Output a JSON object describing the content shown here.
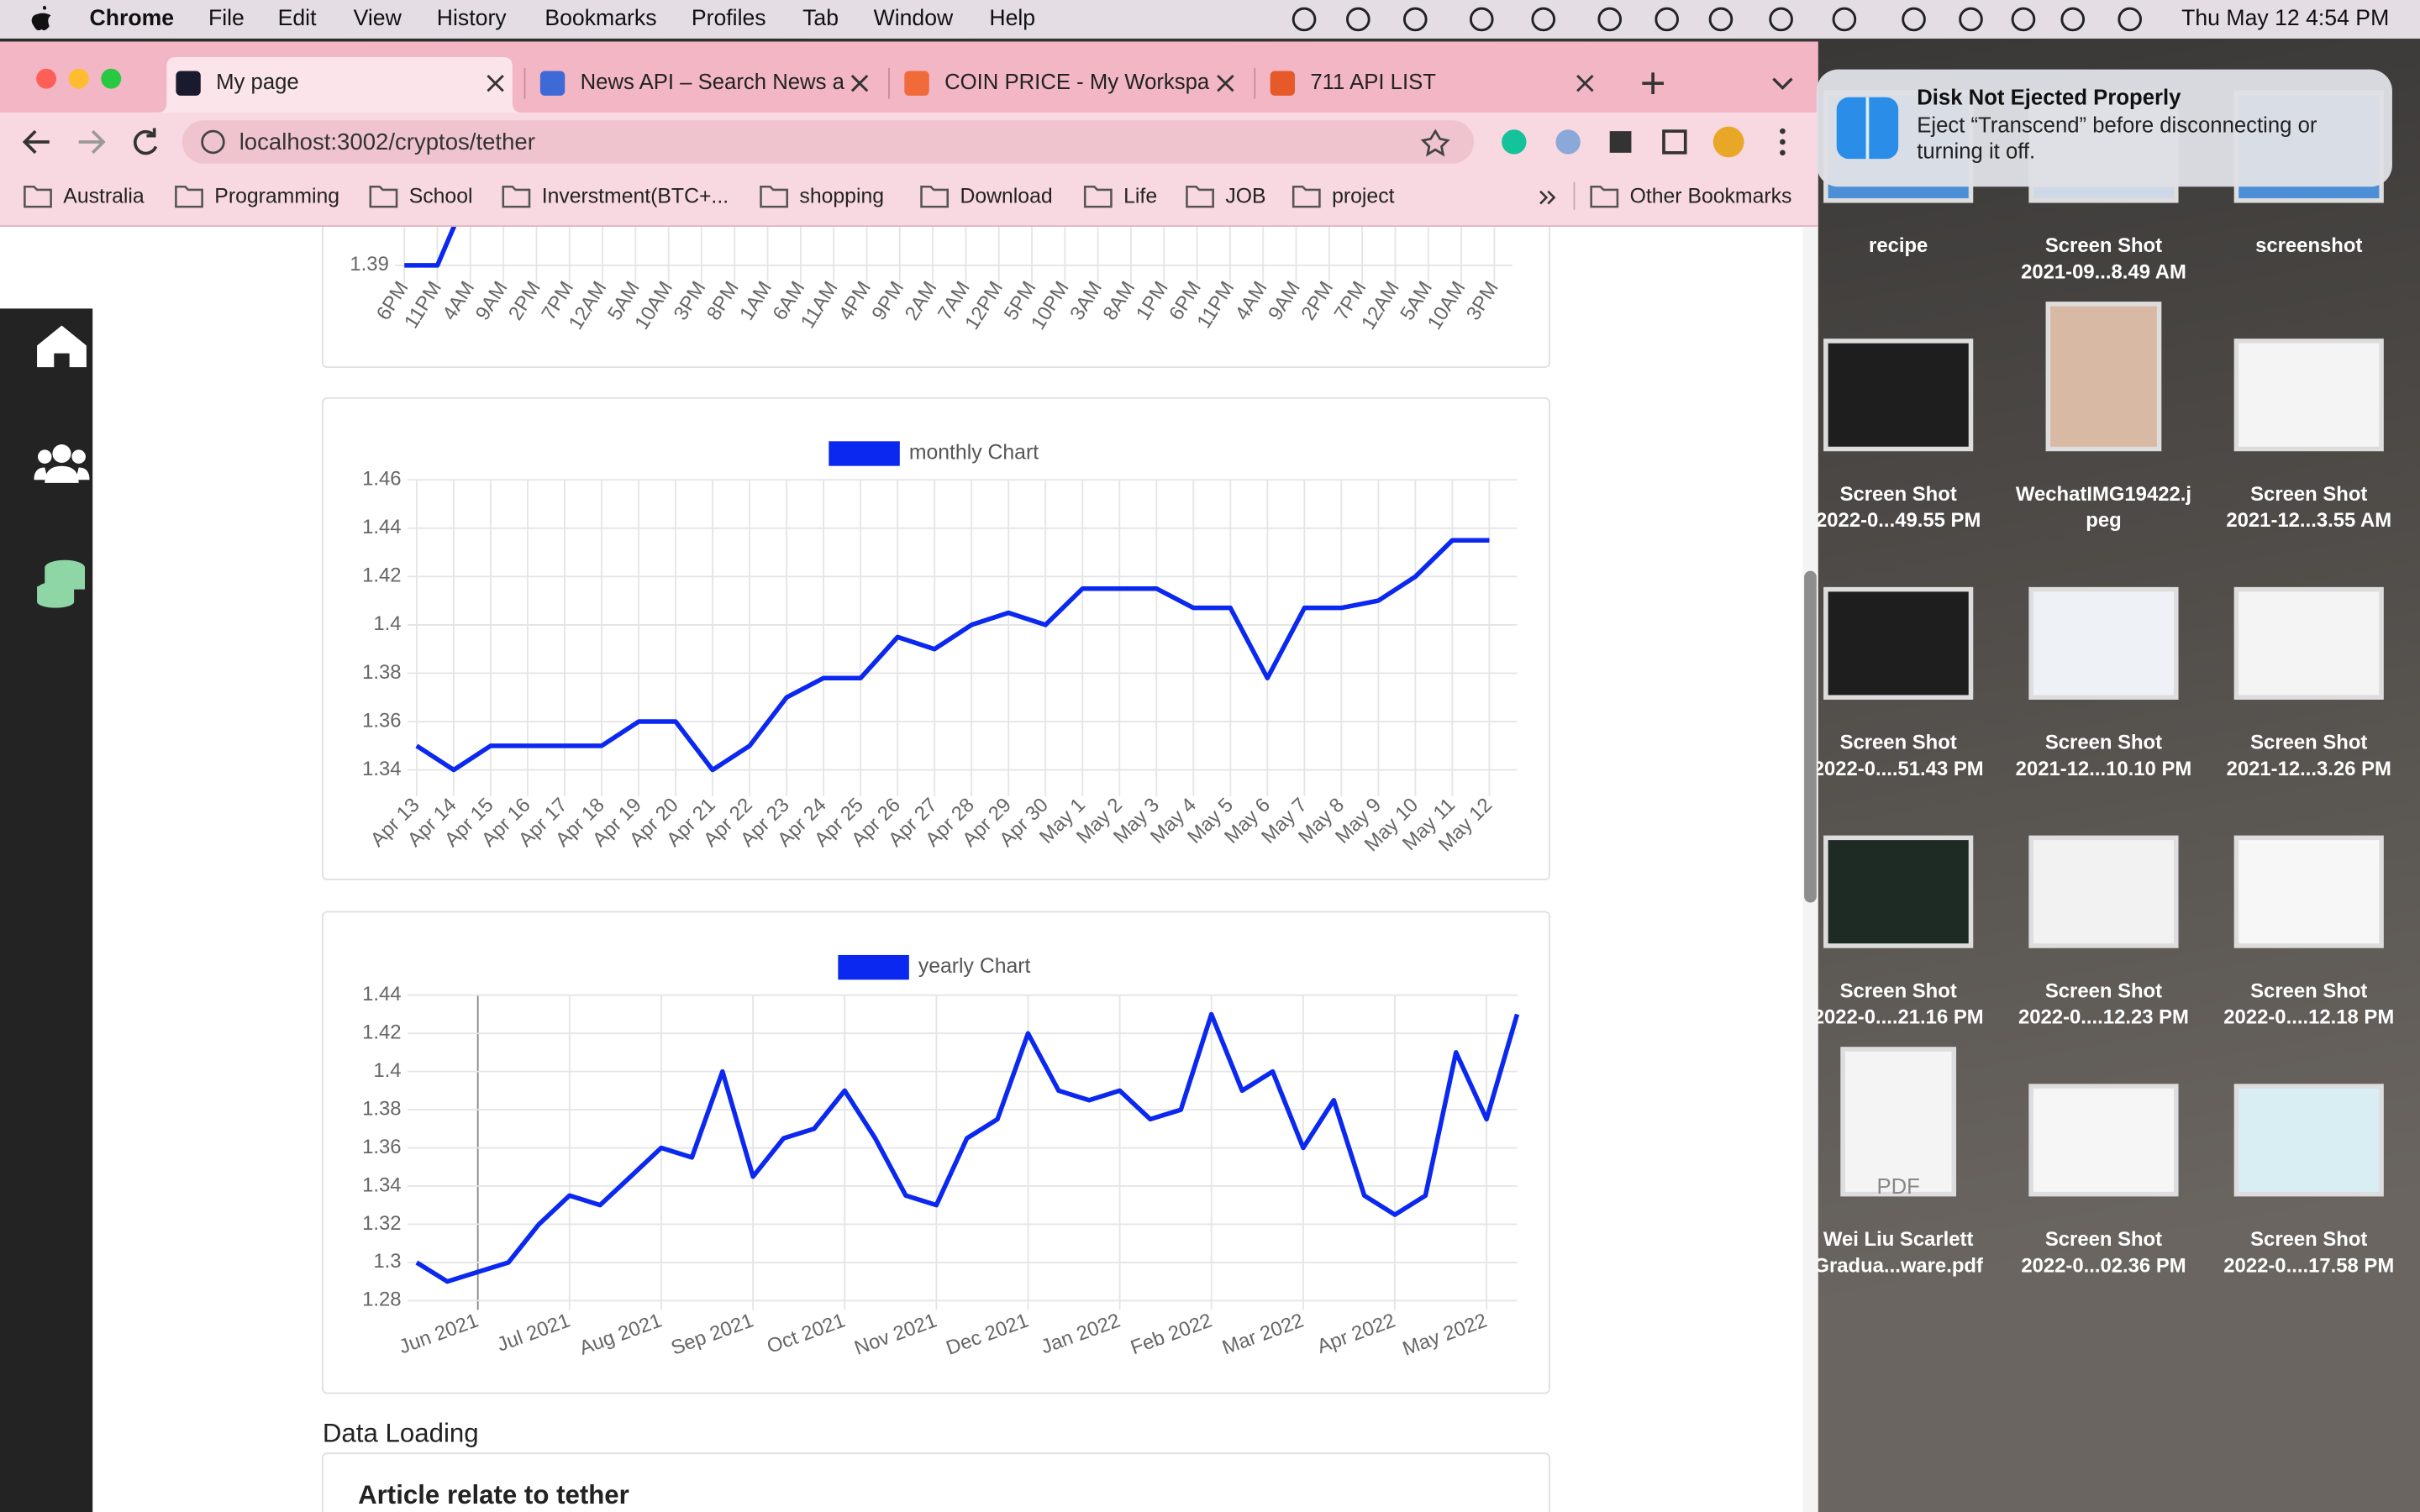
{
  "menu_bar": {
    "app": "Chrome",
    "items": [
      "File",
      "Edit",
      "View",
      "History",
      "Bookmarks",
      "Profiles",
      "Tab",
      "Window",
      "Help"
    ],
    "clock": "Thu May 12  4:54 PM"
  },
  "browser": {
    "tabs": [
      "My page",
      "News API – Search News a",
      "COIN PRICE - My Workspa",
      "711 API LIST"
    ],
    "url": "localhost:3002/cryptos/tether",
    "bookmarks": [
      "Australia",
      "Programming",
      "School",
      "Inverstment(BTC+...",
      "shopping",
      "Download",
      "Life",
      "JOB",
      "project"
    ],
    "other_bookmarks": "Other Bookmarks"
  },
  "notification": {
    "title": "Disk Not Ejected Properly",
    "body": [
      "Eject “Transcend” before disconnecting or",
      "turning it off."
    ]
  },
  "desktop_icons": [
    [
      "recipe"
    ],
    [
      "Screen Shot",
      "2021-09...8.49 AM"
    ],
    [
      "screenshot"
    ],
    [
      "Screen Shot",
      "2022-0...49.55 PM"
    ],
    [
      "WechatIMG19422.j",
      "peg"
    ],
    [
      "Screen Shot",
      "2021-12...3.55 AM"
    ],
    [
      "Screen Shot",
      "2022-0....51.43 PM"
    ],
    [
      "Screen Shot",
      "2021-12...10.10 PM"
    ],
    [
      "Screen Shot",
      "2021-12...3.26 PM"
    ],
    [
      "Screen Shot",
      "2022-0....21.16 PM"
    ],
    [
      "Screen Shot",
      "2022-0....12.23 PM"
    ],
    [
      "Screen Shot",
      "2022-0....12.18 PM"
    ],
    [
      "Wei Liu Scarlett",
      "Gradua...ware.pdf"
    ],
    [
      "Screen Shot",
      "2022-0...02.36 PM"
    ],
    [
      "Screen Shot",
      "2022-0....17.58 PM"
    ]
  ],
  "pdf_badge": "PDF",
  "chart_data": [
    {
      "type": "line",
      "color": "#0a28f0",
      "categories": [
        "6PM",
        "11PM",
        "4AM",
        "9AM",
        "2PM",
        "7PM",
        "12AM",
        "5AM",
        "10AM",
        "3PM",
        "8PM",
        "1AM",
        "6AM",
        "11AM",
        "4PM",
        "9PM",
        "2AM",
        "7AM",
        "12PM",
        "5PM",
        "10PM",
        "3AM",
        "8AM",
        "1PM",
        "6PM",
        "11PM",
        "4AM",
        "9AM",
        "2PM",
        "7PM",
        "12AM",
        "5AM",
        "10AM",
        "3PM"
      ],
      "values": [
        1.39,
        1.39,
        1.4,
        null,
        null,
        null,
        null,
        null,
        null,
        null,
        null,
        null,
        null,
        null,
        null,
        null,
        null,
        null,
        null,
        null,
        null,
        null,
        null,
        null,
        null,
        null,
        null,
        null,
        null,
        null,
        null,
        null,
        null,
        null
      ],
      "ylim": [
        1.39,
        1.395
      ],
      "yticks": [
        1.39
      ],
      "grid": true
    },
    {
      "type": "line",
      "categories": [
        "Apr 13",
        "Apr 14",
        "Apr 15",
        "Apr 16",
        "Apr 17",
        "Apr 18",
        "Apr 19",
        "Apr 20",
        "Apr 21",
        "Apr 22",
        "Apr 23",
        "Apr 24",
        "Apr 25",
        "Apr 26",
        "Apr 27",
        "Apr 28",
        "Apr 29",
        "Apr 30",
        "May 1",
        "May 2",
        "May 3",
        "May 4",
        "May 5",
        "May 6",
        "May 7",
        "May 8",
        "May 9",
        "May 10",
        "May 11",
        "May 12"
      ],
      "series": [
        {
          "name": "monthly  Chart",
          "color": "#0a28f0",
          "values": [
            1.35,
            1.34,
            1.35,
            1.35,
            1.35,
            1.35,
            1.36,
            1.36,
            1.34,
            1.35,
            1.37,
            1.378,
            1.378,
            1.395,
            1.39,
            1.4,
            1.405,
            1.4,
            1.415,
            1.415,
            1.415,
            1.407,
            1.407,
            1.378,
            1.407,
            1.407,
            1.41,
            1.42,
            1.435,
            1.435
          ]
        }
      ],
      "ylim": [
        1.333,
        1.46
      ],
      "yticks": [
        1.34,
        1.36,
        1.38,
        1.4,
        1.42,
        1.44,
        1.46
      ],
      "grid": true
    },
    {
      "type": "line",
      "categories": [
        null,
        null,
        "Jun 2021",
        null,
        null,
        "Jul 2021",
        null,
        null,
        "Aug 2021",
        null,
        null,
        "Sep 2021",
        null,
        null,
        "Oct 2021",
        null,
        null,
        "Nov 2021",
        null,
        null,
        "Dec 2021",
        null,
        null,
        "Jan 2022",
        null,
        null,
        "Feb 2022",
        null,
        null,
        "Mar 2022",
        null,
        null,
        "Apr 2022",
        null,
        null,
        "May 2022",
        null
      ],
      "series": [
        {
          "name": "yearly  Chart",
          "color": "#0a28f0",
          "values": [
            1.3,
            1.29,
            1.295,
            1.3,
            1.32,
            1.335,
            1.33,
            1.345,
            1.36,
            1.355,
            1.4,
            1.345,
            1.365,
            1.37,
            1.39,
            1.365,
            1.335,
            1.33,
            1.365,
            1.375,
            1.42,
            1.39,
            1.385,
            1.39,
            1.375,
            1.38,
            1.43,
            1.39,
            1.4,
            1.36,
            1.385,
            1.335,
            1.325,
            1.335,
            1.41,
            1.375,
            1.43
          ]
        }
      ],
      "ylim": [
        1.28,
        1.44
      ],
      "yticks": [
        1.28,
        1.3,
        1.32,
        1.34,
        1.36,
        1.38,
        1.4,
        1.42,
        1.44
      ],
      "grid": true
    }
  ],
  "page": {
    "status": "Data Loading",
    "article_heading": "Article relate to tether"
  }
}
